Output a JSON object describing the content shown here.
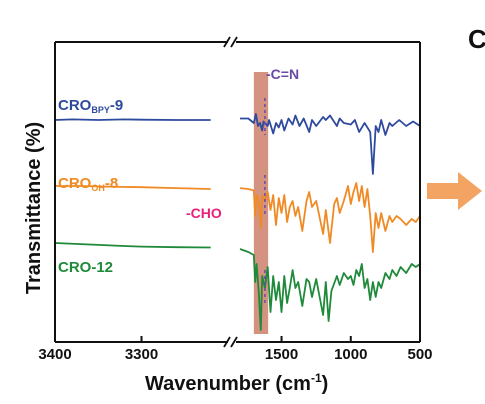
{
  "colors": {
    "bpy": "#2e4a9e",
    "oh": "#f08a24",
    "cro12": "#1f8a3a",
    "cho_text": "#e8207a",
    "cn_text": "#6a4aa8",
    "highlight": "#cd7f6a",
    "arrow": "#f4a462",
    "axis": "#111111"
  },
  "panel_letter": "C",
  "annotations": {
    "cho": "-CHO",
    "cn": "-C=N"
  },
  "chart_data": {
    "type": "line",
    "xlabel": "Wavenumber (cm-1)",
    "xlabel_main": "Wavenumber (cm",
    "xlabel_sup": "-1",
    "xlabel_close": ")",
    "ylabel": "Transmittance (%)",
    "x_axis_broken": true,
    "x_segments": [
      {
        "range": [
          3400,
          3200
        ],
        "ticks": [
          3400,
          3300
        ],
        "tick_labels": [
          "3400",
          "3300"
        ]
      },
      {
        "range": [
          1800,
          500
        ],
        "ticks": [
          1500,
          1000,
          500
        ],
        "tick_labels": [
          "1500",
          "1000",
          "500"
        ]
      }
    ],
    "highlight_band": [
      1700,
      1640
    ],
    "series": [
      {
        "name": "CRO_BPY-9",
        "label_main": "CRO",
        "label_sub": "BPY",
        "label_suffix": "-9",
        "color_key": "bpy",
        "baseline": 0.72,
        "points": [
          [
            3400,
            0.74
          ],
          [
            3380,
            0.742
          ],
          [
            3350,
            0.74
          ],
          [
            3320,
            0.742
          ],
          [
            3300,
            0.741
          ],
          [
            3260,
            0.74
          ],
          [
            3220,
            0.74
          ],
          [
            1800,
            0.745
          ],
          [
            1740,
            0.745
          ],
          [
            1700,
            0.73
          ],
          [
            1685,
            0.76
          ],
          [
            1670,
            0.72
          ],
          [
            1655,
            0.73
          ],
          [
            1640,
            0.705
          ],
          [
            1630,
            0.735
          ],
          [
            1600,
            0.72
          ],
          [
            1590,
            0.74
          ],
          [
            1560,
            0.695
          ],
          [
            1540,
            0.73
          ],
          [
            1520,
            0.715
          ],
          [
            1500,
            0.74
          ],
          [
            1480,
            0.705
          ],
          [
            1450,
            0.745
          ],
          [
            1420,
            0.725
          ],
          [
            1400,
            0.755
          ],
          [
            1370,
            0.72
          ],
          [
            1340,
            0.745
          ],
          [
            1300,
            0.7
          ],
          [
            1280,
            0.74
          ],
          [
            1250,
            0.72
          ],
          [
            1200,
            0.75
          ],
          [
            1180,
            0.74
          ],
          [
            1150,
            0.755
          ],
          [
            1100,
            0.72
          ],
          [
            1080,
            0.745
          ],
          [
            1050,
            0.73
          ],
          [
            1000,
            0.725
          ],
          [
            970,
            0.74
          ],
          [
            940,
            0.7
          ],
          [
            900,
            0.73
          ],
          [
            860,
            0.7
          ],
          [
            840,
            0.56
          ],
          [
            820,
            0.72
          ],
          [
            800,
            0.7
          ],
          [
            780,
            0.74
          ],
          [
            750,
            0.69
          ],
          [
            720,
            0.73
          ],
          [
            700,
            0.72
          ],
          [
            650,
            0.74
          ],
          [
            600,
            0.72
          ],
          [
            550,
            0.735
          ],
          [
            500,
            0.72
          ]
        ]
      },
      {
        "name": "CRO_OH-8",
        "label_main": "CRO",
        "label_sub": "OH",
        "label_suffix": "-8",
        "color_key": "oh",
        "baseline": 0.5,
        "points": [
          [
            3400,
            0.52
          ],
          [
            3370,
            0.52
          ],
          [
            3340,
            0.518
          ],
          [
            3300,
            0.516
          ],
          [
            3260,
            0.513
          ],
          [
            3220,
            0.51
          ],
          [
            1800,
            0.513
          ],
          [
            1740,
            0.51
          ],
          [
            1700,
            0.505
          ],
          [
            1690,
            0.42
          ],
          [
            1680,
            0.49
          ],
          [
            1665,
            0.47
          ],
          [
            1650,
            0.38
          ],
          [
            1640,
            0.49
          ],
          [
            1620,
            0.47
          ],
          [
            1600,
            0.5
          ],
          [
            1580,
            0.44
          ],
          [
            1560,
            0.49
          ],
          [
            1540,
            0.39
          ],
          [
            1520,
            0.48
          ],
          [
            1500,
            0.43
          ],
          [
            1480,
            0.49
          ],
          [
            1460,
            0.4
          ],
          [
            1440,
            0.45
          ],
          [
            1420,
            0.47
          ],
          [
            1400,
            0.42
          ],
          [
            1380,
            0.45
          ],
          [
            1350,
            0.37
          ],
          [
            1320,
            0.47
          ],
          [
            1300,
            0.5
          ],
          [
            1280,
            0.45
          ],
          [
            1250,
            0.47
          ],
          [
            1200,
            0.36
          ],
          [
            1180,
            0.44
          ],
          [
            1150,
            0.33
          ],
          [
            1120,
            0.46
          ],
          [
            1100,
            0.48
          ],
          [
            1080,
            0.43
          ],
          [
            1050,
            0.47
          ],
          [
            1020,
            0.52
          ],
          [
            1000,
            0.46
          ],
          [
            980,
            0.5
          ],
          [
            960,
            0.53
          ],
          [
            940,
            0.47
          ],
          [
            920,
            0.52
          ],
          [
            900,
            0.45
          ],
          [
            880,
            0.51
          ],
          [
            860,
            0.42
          ],
          [
            840,
            0.3
          ],
          [
            820,
            0.43
          ],
          [
            800,
            0.38
          ],
          [
            780,
            0.43
          ],
          [
            750,
            0.37
          ],
          [
            720,
            0.42
          ],
          [
            700,
            0.4
          ],
          [
            670,
            0.42
          ],
          [
            640,
            0.41
          ],
          [
            600,
            0.39
          ],
          [
            560,
            0.41
          ],
          [
            530,
            0.4
          ],
          [
            500,
            0.42
          ]
        ]
      },
      {
        "name": "CRO-12",
        "label_main": "CRO-12",
        "label_sub": "",
        "label_suffix": "",
        "color_key": "cro12",
        "baseline": 0.32,
        "points": [
          [
            3400,
            0.33
          ],
          [
            3360,
            0.325
          ],
          [
            3320,
            0.32
          ],
          [
            3300,
            0.318
          ],
          [
            3260,
            0.316
          ],
          [
            3220,
            0.315
          ],
          [
            1800,
            0.31
          ],
          [
            1740,
            0.3
          ],
          [
            1700,
            0.29
          ],
          [
            1690,
            0.2
          ],
          [
            1680,
            0.26
          ],
          [
            1665,
            0.17
          ],
          [
            1650,
            0.04
          ],
          [
            1640,
            0.22
          ],
          [
            1620,
            0.18
          ],
          [
            1600,
            0.25
          ],
          [
            1580,
            0.1
          ],
          [
            1560,
            0.22
          ],
          [
            1540,
            0.14
          ],
          [
            1520,
            0.2
          ],
          [
            1500,
            0.1
          ],
          [
            1480,
            0.22
          ],
          [
            1460,
            0.13
          ],
          [
            1440,
            0.18
          ],
          [
            1420,
            0.24
          ],
          [
            1400,
            0.18
          ],
          [
            1380,
            0.2
          ],
          [
            1350,
            0.12
          ],
          [
            1320,
            0.21
          ],
          [
            1300,
            0.2
          ],
          [
            1280,
            0.15
          ],
          [
            1250,
            0.21
          ],
          [
            1200,
            0.09
          ],
          [
            1180,
            0.2
          ],
          [
            1160,
            0.07
          ],
          [
            1140,
            0.17
          ],
          [
            1100,
            0.22
          ],
          [
            1080,
            0.19
          ],
          [
            1050,
            0.23
          ],
          [
            1020,
            0.21
          ],
          [
            1000,
            0.22
          ],
          [
            980,
            0.19
          ],
          [
            960,
            0.24
          ],
          [
            940,
            0.22
          ],
          [
            920,
            0.26
          ],
          [
            900,
            0.18
          ],
          [
            880,
            0.21
          ],
          [
            860,
            0.14
          ],
          [
            840,
            0.2
          ],
          [
            820,
            0.15
          ],
          [
            800,
            0.2
          ],
          [
            780,
            0.18
          ],
          [
            750,
            0.23
          ],
          [
            720,
            0.21
          ],
          [
            700,
            0.24
          ],
          [
            670,
            0.22
          ],
          [
            640,
            0.25
          ],
          [
            600,
            0.23
          ],
          [
            560,
            0.26
          ],
          [
            530,
            0.25
          ],
          [
            500,
            0.26
          ]
        ]
      }
    ]
  }
}
